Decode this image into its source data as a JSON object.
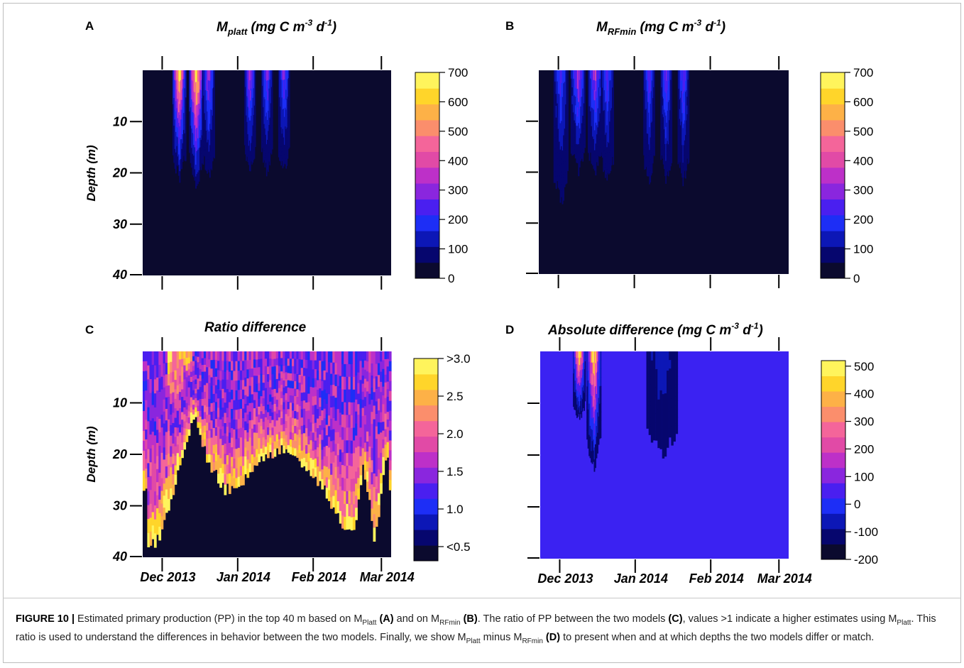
{
  "figure": {
    "caption": {
      "label": "FIGURE 10 |",
      "t1": " Estimated primary production (PP) in the top 40 m based on M",
      "s1": "Platt",
      "b1": "(A)",
      "t2": " and on M",
      "s2": "RFmin",
      "b2": "(B)",
      "t3": ". The ratio of PP between the two models ",
      "b3": "(C)",
      "t4": ", values >1 indicate a higher estimates using M",
      "s3": "Platt",
      "t5": ". This ratio is used to understand the differences in behavior between the two models. Finally, we show M",
      "s4": "Platt",
      "t6": " minus M",
      "s5": "RFmin",
      "b4": "(D)",
      "t7": " to present when and at which depths the two models differ or match."
    }
  },
  "colors": {
    "background": "#0b0a2e",
    "uniform_zero": "#3b22f2",
    "scale": [
      "#0b0a2e",
      "#06066e",
      "#0c17b6",
      "#1d2ef6",
      "#4a1ff0",
      "#8a26de",
      "#bd30c8",
      "#e14aa6",
      "#f4659a",
      "#fb8e6c",
      "#fdb147",
      "#ffd52a",
      "#fff45c"
    ]
  },
  "chart_data": [
    {
      "panel": "A",
      "type": "heatmap",
      "title": "M_platt (mg C m^-3 d^-1)",
      "title_main": "M",
      "title_sub": "platt",
      "title_unit": " (mg C m",
      "title_exp1": "-3",
      "title_mid": " d",
      "title_exp2": "-1",
      "title_end": ")",
      "ylabel": "Depth (m)",
      "y_ticks": [
        "10",
        "20",
        "30",
        "40"
      ],
      "y_tick_values": [
        10,
        20,
        30,
        40
      ],
      "x_tick_labels": [],
      "colorbar": {
        "ticks": [
          "0",
          "100",
          "200",
          "300",
          "400",
          "500",
          "600",
          "700"
        ],
        "min": 0,
        "max": 700
      },
      "grid": false,
      "blobs": [
        {
          "date": "2013-12-08",
          "width_days": 2.6,
          "depth_max": 21,
          "peak": 650
        },
        {
          "date": "2013-12-15",
          "width_days": 2.8,
          "depth_max": 22,
          "peak": 680
        },
        {
          "date": "2013-12-20",
          "width_days": 2.4,
          "depth_max": 21,
          "peak": 300
        },
        {
          "date": "2014-01-06",
          "width_days": 2.2,
          "depth_max": 20,
          "peak": 320
        },
        {
          "date": "2014-01-13",
          "width_days": 2.2,
          "depth_max": 20,
          "peak": 260
        },
        {
          "date": "2014-01-20",
          "width_days": 2.2,
          "depth_max": 20,
          "peak": 260
        }
      ]
    },
    {
      "panel": "B",
      "type": "heatmap",
      "title": "M_RFmin (mg C m^-3 d^-1)",
      "title_main": "M",
      "title_sub": "RFmin",
      "title_unit": " (mg C m",
      "title_exp1": "-3",
      "title_mid": " d",
      "title_exp2": "-1",
      "title_end": ")",
      "ylabel": "",
      "y_ticks": [],
      "y_tick_values": [
        10,
        20,
        30,
        40
      ],
      "x_tick_labels": [],
      "colorbar": {
        "ticks": [
          "0",
          "100",
          "200",
          "300",
          "400",
          "500",
          "600",
          "700"
        ],
        "min": 0,
        "max": 700
      },
      "grid": false,
      "blobs": [
        {
          "date": "2013-12-02",
          "width_days": 2.8,
          "depth_max": 26,
          "peak": 200
        },
        {
          "date": "2013-12-09",
          "width_days": 2.8,
          "depth_max": 20,
          "peak": 330
        },
        {
          "date": "2013-12-16",
          "width_days": 2.8,
          "depth_max": 20,
          "peak": 330
        },
        {
          "date": "2013-12-21",
          "width_days": 2.4,
          "depth_max": 22,
          "peak": 230
        },
        {
          "date": "2014-01-07",
          "width_days": 2.2,
          "depth_max": 22,
          "peak": 240
        },
        {
          "date": "2014-01-14",
          "width_days": 2.2,
          "depth_max": 22,
          "peak": 260
        },
        {
          "date": "2014-01-21",
          "width_days": 2.2,
          "depth_max": 22,
          "peak": 260
        }
      ]
    },
    {
      "panel": "C",
      "type": "heatmap",
      "title": "Ratio difference",
      "ylabel": "Depth (m)",
      "y_ticks": [
        "10",
        "20",
        "30",
        "40"
      ],
      "y_tick_values": [
        10,
        20,
        30,
        40
      ],
      "x_tick_labels": [
        "Dec 2013",
        "Jan 2014",
        "Feb 2014",
        "Mar 2014"
      ],
      "x_tick_dates": [
        "2013-12-01",
        "2014-01-01",
        "2014-02-01",
        "2014-03-01"
      ],
      "colorbar": {
        "ticks": [
          "<0.5",
          "1.0",
          "1.5",
          "2.0",
          "2.5",
          ">3.0"
        ],
        "min": 0.5,
        "max": 3.0
      },
      "grid": false,
      "boundary_depth": [
        {
          "date": "2013-11-24",
          "depth": 40
        },
        {
          "date": "2013-11-27",
          "depth": 38
        },
        {
          "date": "2013-12-01",
          "depth": 34
        },
        {
          "date": "2013-12-05",
          "depth": 27
        },
        {
          "date": "2013-12-10",
          "depth": 18
        },
        {
          "date": "2013-12-14",
          "depth": 12
        },
        {
          "date": "2013-12-19",
          "depth": 21
        },
        {
          "date": "2013-12-26",
          "depth": 27
        },
        {
          "date": "2014-01-04",
          "depth": 25
        },
        {
          "date": "2014-01-10",
          "depth": 21
        },
        {
          "date": "2014-01-19",
          "depth": 19
        },
        {
          "date": "2014-01-28",
          "depth": 22
        },
        {
          "date": "2014-02-05",
          "depth": 27
        },
        {
          "date": "2014-02-12",
          "depth": 33
        },
        {
          "date": "2014-02-17",
          "depth": 35
        },
        {
          "date": "2014-02-21",
          "depth": 22
        },
        {
          "date": "2014-02-26",
          "depth": 37
        },
        {
          "date": "2014-03-03",
          "depth": 19
        },
        {
          "date": "2014-03-04",
          "depth": 26
        }
      ]
    },
    {
      "panel": "D",
      "type": "heatmap",
      "title": "Absolute difference (mg C m^-3 d^-1)",
      "title_main": "Absolute difference",
      "title_unit": " (mg C m",
      "title_exp1": "-3",
      "title_mid": " d",
      "title_exp2": "-1",
      "title_end": ")",
      "ylabel": "",
      "y_ticks": [],
      "y_tick_values": [
        10,
        20,
        30,
        40
      ],
      "x_tick_labels": [
        "Dec 2013",
        "Jan 2014",
        "Feb 2014",
        "Mar 2014"
      ],
      "x_tick_dates": [
        "2013-12-01",
        "2014-01-01",
        "2014-02-01",
        "2014-03-01"
      ],
      "colorbar": {
        "ticks": [
          "-200",
          "-100",
          "0",
          "100",
          "200",
          "300",
          "400",
          "500"
        ],
        "min": -200,
        "max": 520
      },
      "grid": false,
      "blobs": [
        {
          "date": "2013-12-09",
          "width_days": 2.4,
          "depth_max": 13,
          "peak": 470
        },
        {
          "date": "2013-12-15",
          "width_days": 2.8,
          "depth_max": 22,
          "peak": 480
        },
        {
          "date": "2014-01-12",
          "width_days": 6.0,
          "depth_max": 20,
          "peak": 90
        }
      ]
    }
  ]
}
